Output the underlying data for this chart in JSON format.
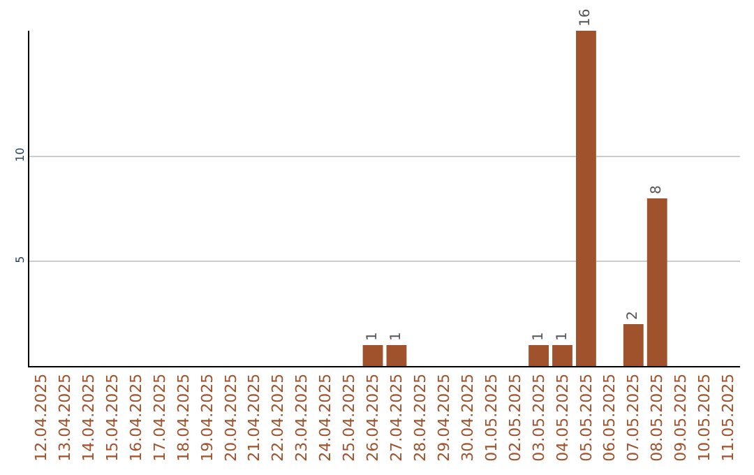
{
  "chart_data": {
    "type": "bar",
    "categories": [
      "12.04.2025",
      "13.04.2025",
      "14.04.2025",
      "15.04.2025",
      "16.04.2025",
      "17.04.2025",
      "18.04.2025",
      "19.04.2025",
      "20.04.2025",
      "21.04.2025",
      "22.04.2025",
      "23.04.2025",
      "24.04.2025",
      "25.04.2025",
      "26.04.2025",
      "27.04.2025",
      "28.04.2025",
      "29.04.2025",
      "30.04.2025",
      "01.05.2025",
      "02.05.2025",
      "03.05.2025",
      "04.05.2025",
      "05.05.2025",
      "06.05.2025",
      "07.05.2025",
      "08.05.2025",
      "09.05.2025",
      "10.05.2025",
      "11.05.2025"
    ],
    "values": [
      0,
      0,
      0,
      0,
      0,
      0,
      0,
      0,
      0,
      0,
      0,
      0,
      0,
      0,
      1,
      1,
      0,
      0,
      0,
      0,
      0,
      1,
      1,
      16,
      0,
      2,
      8,
      0,
      0,
      0
    ],
    "value_labels": [
      null,
      null,
      null,
      null,
      null,
      null,
      null,
      null,
      null,
      null,
      null,
      null,
      null,
      null,
      "1",
      "1",
      null,
      null,
      null,
      null,
      null,
      "1",
      "1",
      "16",
      null,
      "2",
      "8",
      null,
      null,
      null
    ],
    "color": "#a0522d",
    "ylim": [
      0,
      16
    ],
    "yticks": [
      5,
      10
    ],
    "grid": "y",
    "legend": false
  }
}
